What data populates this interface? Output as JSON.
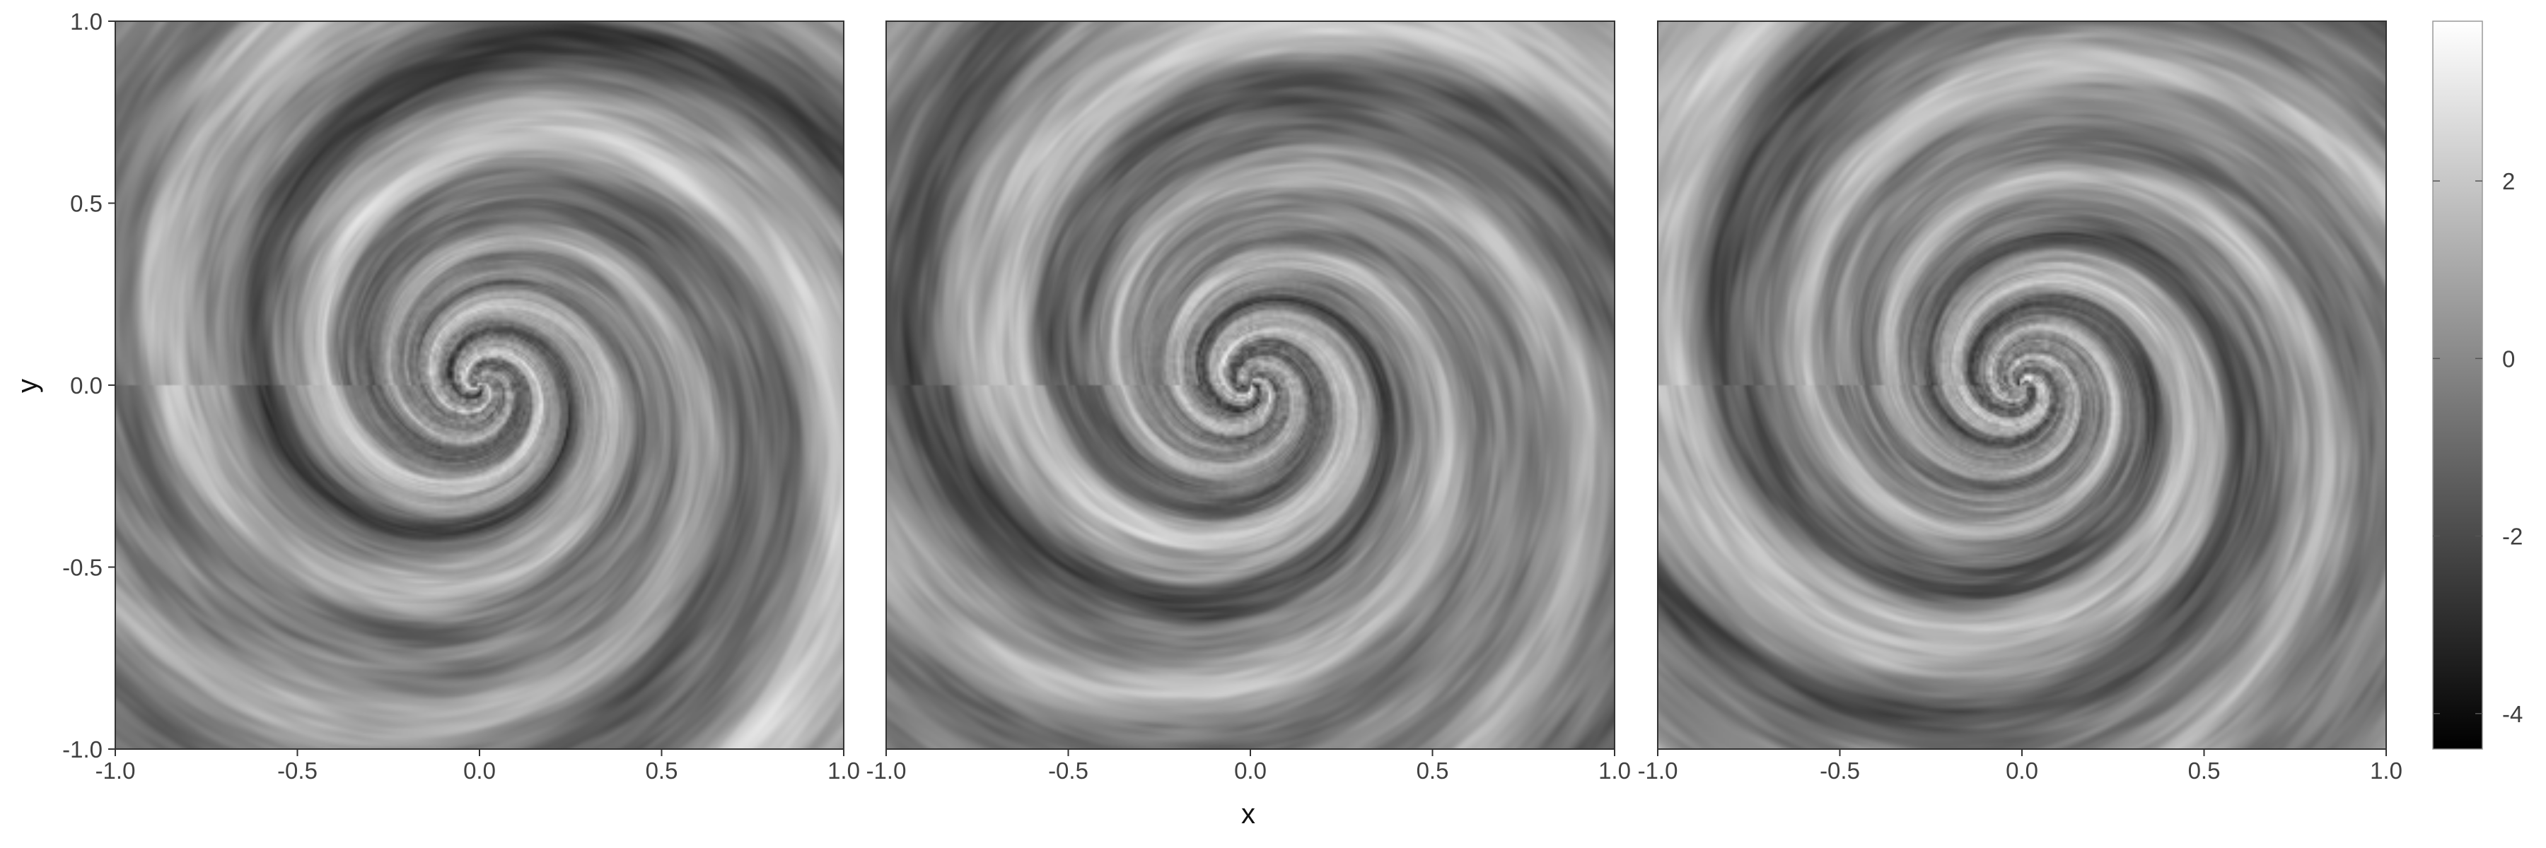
{
  "chart_data": {
    "type": "heatmap",
    "colormap": "grayscale",
    "colors": {
      "low": "#000000",
      "high": "#ffffff",
      "frame": "#333333",
      "tick_text": "#404040"
    },
    "xlabel": "x",
    "ylabel": "y",
    "xlim": [
      -1.0,
      1.0
    ],
    "ylim": [
      -1.0,
      1.0
    ],
    "x_ticks": [
      -1.0,
      -0.5,
      0.0,
      0.5,
      1.0
    ],
    "y_ticks": [
      -1.0,
      -0.5,
      0.0,
      0.5,
      1.0
    ],
    "grid": false,
    "panels": [
      {
        "field": "swirl",
        "arms": 3,
        "twist": 4.2,
        "phase": 0.3
      },
      {
        "field": "swirl",
        "arms": 3,
        "twist": 4.0,
        "phase": 1.9
      },
      {
        "field": "swirl",
        "arms": 3,
        "twist": 4.4,
        "phase": 3.6
      }
    ],
    "colorbar": {
      "range": [
        -4.4,
        3.8
      ],
      "ticks": [
        2,
        0,
        -2,
        -4
      ],
      "placement": "right"
    }
  }
}
